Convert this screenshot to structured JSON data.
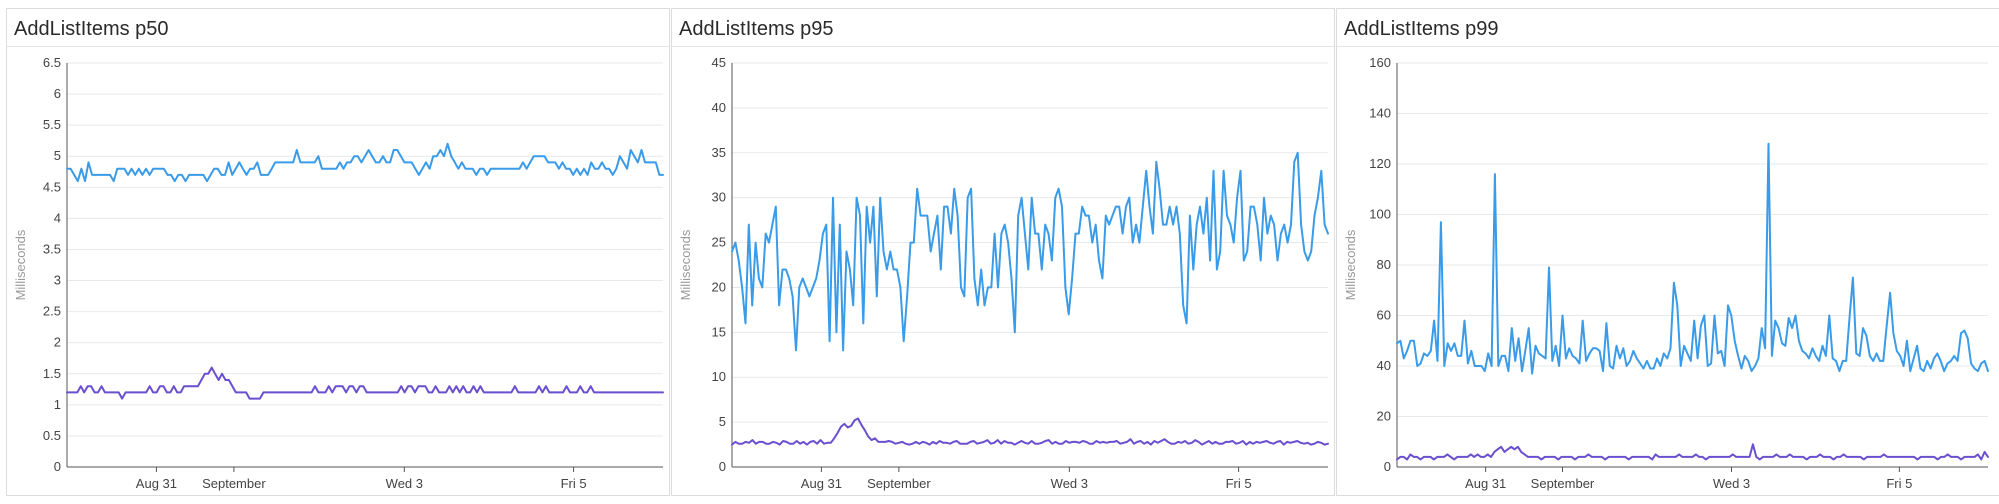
{
  "colors": {
    "series_blue": "#3a9be8",
    "series_purple": "#6a4fcf",
    "grid": "#e9e9e9",
    "axis": "#555555"
  },
  "chart_data": [
    {
      "type": "line",
      "title": "AddListItems p50",
      "ylabel": "Milliseconds",
      "ylim": [
        0,
        6.5
      ],
      "yticks": [
        "0",
        "0.5",
        "1",
        "1.5",
        "2",
        "2.5",
        "3",
        "3.5",
        "4",
        "4.5",
        "5",
        "5.5",
        "6",
        "6.5"
      ],
      "xlim": [
        0,
        1
      ],
      "xticks": [
        {
          "label": "Aug 31",
          "value": 0.15
        },
        {
          "label": "September",
          "value": 0.28
        },
        {
          "label": "Wed 3",
          "value": 0.566
        },
        {
          "label": "Fri 5",
          "value": 0.85
        }
      ],
      "grid": true,
      "series": [
        {
          "color": "#3a9be8",
          "values": [
            4.8,
            4.8,
            4.7,
            4.6,
            4.8,
            4.6,
            4.9,
            4.7,
            4.7,
            4.7,
            4.7,
            4.7,
            4.7,
            4.6,
            4.8,
            4.8,
            4.8,
            4.7,
            4.8,
            4.7,
            4.8,
            4.7,
            4.8,
            4.7,
            4.8,
            4.8,
            4.8,
            4.8,
            4.7,
            4.7,
            4.6,
            4.7,
            4.7,
            4.6,
            4.7,
            4.7,
            4.7,
            4.7,
            4.7,
            4.6,
            4.7,
            4.8,
            4.8,
            4.7,
            4.7,
            4.9,
            4.7,
            4.8,
            4.9,
            4.8,
            4.7,
            4.8,
            4.8,
            4.9,
            4.7,
            4.7,
            4.7,
            4.8,
            4.9,
            4.9,
            4.9,
            4.9,
            4.9,
            4.9,
            5.1,
            4.9,
            4.9,
            4.9,
            4.9,
            4.9,
            5.0,
            4.8,
            4.8,
            4.8,
            4.8,
            4.8,
            4.9,
            4.8,
            4.9,
            4.9,
            5.0,
            5.0,
            4.9,
            5.0,
            5.1,
            5.0,
            4.9,
            4.9,
            5.0,
            4.9,
            4.9,
            5.1,
            5.1,
            5.0,
            4.9,
            4.9,
            4.9,
            4.8,
            4.7,
            4.8,
            4.9,
            4.8,
            5.0,
            5.0,
            5.1,
            5.0,
            5.2,
            5.0,
            4.9,
            4.8,
            4.9,
            4.8,
            4.8,
            4.8,
            4.7,
            4.8,
            4.8,
            4.7,
            4.8,
            4.8,
            4.8,
            4.8,
            4.8,
            4.8,
            4.8,
            4.8,
            4.8,
            4.9,
            4.8,
            4.9,
            5.0,
            5.0,
            5.0,
            5.0,
            4.9,
            4.9,
            4.9,
            4.8,
            4.9,
            4.8,
            4.8,
            4.7,
            4.8,
            4.7,
            4.8,
            4.7,
            4.9,
            4.8,
            4.8,
            4.9,
            4.8,
            4.8,
            4.7,
            4.8,
            5.0,
            4.9,
            4.8,
            5.1,
            5.0,
            4.9,
            5.1,
            4.9,
            4.9,
            4.9,
            4.9,
            4.7,
            4.7
          ]
        },
        {
          "color": "#6a4fcf",
          "values": [
            1.2,
            1.2,
            1.2,
            1.2,
            1.3,
            1.2,
            1.3,
            1.3,
            1.2,
            1.2,
            1.3,
            1.2,
            1.2,
            1.2,
            1.2,
            1.2,
            1.1,
            1.2,
            1.2,
            1.2,
            1.2,
            1.2,
            1.2,
            1.2,
            1.3,
            1.2,
            1.2,
            1.3,
            1.3,
            1.2,
            1.2,
            1.3,
            1.2,
            1.2,
            1.3,
            1.3,
            1.3,
            1.3,
            1.3,
            1.4,
            1.5,
            1.5,
            1.6,
            1.5,
            1.4,
            1.5,
            1.4,
            1.4,
            1.3,
            1.2,
            1.2,
            1.2,
            1.2,
            1.1,
            1.1,
            1.1,
            1.1,
            1.2,
            1.2,
            1.2,
            1.2,
            1.2,
            1.2,
            1.2,
            1.2,
            1.2,
            1.2,
            1.2,
            1.2,
            1.2,
            1.2,
            1.2,
            1.3,
            1.2,
            1.2,
            1.2,
            1.3,
            1.2,
            1.3,
            1.3,
            1.3,
            1.2,
            1.3,
            1.3,
            1.2,
            1.3,
            1.3,
            1.2,
            1.2,
            1.2,
            1.2,
            1.2,
            1.2,
            1.2,
            1.2,
            1.2,
            1.2,
            1.3,
            1.2,
            1.3,
            1.3,
            1.2,
            1.3,
            1.3,
            1.3,
            1.2,
            1.2,
            1.3,
            1.2,
            1.2,
            1.2,
            1.3,
            1.2,
            1.3,
            1.2,
            1.3,
            1.2,
            1.2,
            1.3,
            1.2,
            1.3,
            1.2,
            1.2,
            1.2,
            1.2,
            1.2,
            1.2,
            1.2,
            1.2,
            1.2,
            1.3,
            1.2,
            1.2,
            1.2,
            1.2,
            1.2,
            1.2,
            1.3,
            1.2,
            1.3,
            1.2,
            1.2,
            1.2,
            1.2,
            1.2,
            1.3,
            1.2,
            1.2,
            1.2,
            1.3,
            1.2,
            1.2,
            1.3,
            1.2,
            1.2,
            1.2,
            1.2,
            1.2,
            1.2,
            1.2,
            1.2,
            1.2,
            1.2,
            1.2,
            1.2,
            1.2,
            1.2,
            1.2,
            1.2,
            1.2,
            1.2,
            1.2,
            1.2,
            1.2
          ]
        }
      ]
    },
    {
      "type": "line",
      "title": "AddListItems p95",
      "ylabel": "Milliseconds",
      "ylim": [
        0,
        45
      ],
      "yticks": [
        "0",
        "5",
        "10",
        "15",
        "20",
        "25",
        "30",
        "35",
        "40",
        "45"
      ],
      "xlim": [
        0,
        1
      ],
      "xticks": [
        {
          "label": "Aug 31",
          "value": 0.15
        },
        {
          "label": "September",
          "value": 0.28
        },
        {
          "label": "Wed 3",
          "value": 0.566
        },
        {
          "label": "Fri 5",
          "value": 0.85
        }
      ],
      "grid": true,
      "series": [
        {
          "color": "#3a9be8",
          "values": [
            24,
            25,
            23,
            20,
            16,
            27,
            18,
            25,
            21,
            20,
            26,
            25,
            27,
            29,
            18,
            22,
            22,
            21,
            19,
            13,
            20,
            21,
            20,
            19,
            20,
            21,
            23,
            26,
            27,
            14,
            30,
            15,
            27,
            13,
            24,
            22,
            18,
            30,
            28,
            16,
            29,
            25,
            29,
            19,
            30,
            24,
            22,
            24,
            22,
            22,
            20,
            14,
            19,
            25,
            25,
            31,
            28,
            28,
            28,
            24,
            26,
            28,
            22,
            29,
            29,
            26,
            31,
            28,
            20,
            19,
            30,
            31,
            21,
            18,
            22,
            18,
            20,
            20,
            26,
            20,
            26,
            27,
            25,
            21,
            15,
            28,
            30,
            26,
            22,
            30,
            26,
            26,
            22,
            27,
            26,
            23,
            30,
            31,
            29,
            20,
            17,
            21,
            26,
            26,
            29,
            28,
            28,
            25,
            27,
            23,
            21,
            28,
            27,
            28,
            29,
            29,
            26,
            29,
            30,
            25,
            27,
            25,
            29,
            33,
            29,
            26,
            34,
            31,
            27,
            27,
            29,
            27,
            29,
            26,
            18,
            16,
            28,
            22,
            27,
            29,
            26,
            30,
            23,
            33,
            22,
            24,
            33,
            28,
            27,
            25,
            30,
            33,
            23,
            24,
            29,
            29,
            27,
            23,
            30,
            26,
            28,
            27,
            23,
            26,
            27,
            25,
            27,
            34,
            35,
            27,
            24,
            23,
            24,
            28,
            30,
            33,
            27,
            26
          ]
        },
        {
          "color": "#6a4fcf",
          "values": [
            2.5,
            2.8,
            2.6,
            2.6,
            2.8,
            2.7,
            3.0,
            2.6,
            2.8,
            2.8,
            2.6,
            2.6,
            2.8,
            2.7,
            2.5,
            2.9,
            2.8,
            2.6,
            2.6,
            2.9,
            2.6,
            2.8,
            2.5,
            2.8,
            2.9,
            2.6,
            3.0,
            2.6,
            2.7,
            2.7,
            3.2,
            3.8,
            4.5,
            4.8,
            4.4,
            4.6,
            5.2,
            5.4,
            4.7,
            4.1,
            3.4,
            3.0,
            3.2,
            2.8,
            2.8,
            2.8,
            2.9,
            2.8,
            2.6,
            2.7,
            2.8,
            2.6,
            2.5,
            2.6,
            2.8,
            2.6,
            2.8,
            2.7,
            2.5,
            2.8,
            2.6,
            2.9,
            2.7,
            2.7,
            2.6,
            2.8,
            2.9,
            2.6,
            2.6,
            2.6,
            2.8,
            2.9,
            2.6,
            2.7,
            2.8,
            3.0,
            2.6,
            2.7,
            3.0,
            2.6,
            2.9,
            2.7,
            2.7,
            2.5,
            2.7,
            2.9,
            2.7,
            2.6,
            2.9,
            2.6,
            2.6,
            2.7,
            2.9,
            3.0,
            2.6,
            2.8,
            2.6,
            2.6,
            2.9,
            2.7,
            2.8,
            2.8,
            2.7,
            2.9,
            2.8,
            2.6,
            2.6,
            2.9,
            2.7,
            2.8,
            2.7,
            2.8,
            2.8,
            2.9,
            2.6,
            2.7,
            2.8,
            3.1,
            2.6,
            2.8,
            2.9,
            2.6,
            2.8,
            2.5,
            2.9,
            2.7,
            2.9,
            3.1,
            2.8,
            2.6,
            2.6,
            2.8,
            2.7,
            2.9,
            2.6,
            2.7,
            3.0,
            2.8,
            2.5,
            2.7,
            2.9,
            2.6,
            2.8,
            2.6,
            2.6,
            2.8,
            2.8,
            2.9,
            2.6,
            2.7,
            2.9,
            2.5,
            2.8,
            2.6,
            2.8,
            2.7,
            2.8,
            2.9,
            2.7,
            2.6,
            2.8,
            2.9,
            2.5,
            2.8,
            2.7,
            2.8,
            2.9,
            2.7,
            2.6,
            2.7,
            2.5,
            2.6,
            2.8,
            2.7,
            2.5,
            2.6
          ]
        }
      ]
    },
    {
      "type": "line",
      "title": "AddListItems p99",
      "ylabel": "Milliseconds",
      "ylim": [
        0,
        160
      ],
      "yticks": [
        "0",
        "20",
        "40",
        "60",
        "80",
        "100",
        "120",
        "140",
        "160"
      ],
      "xlim": [
        0,
        1
      ],
      "xticks": [
        {
          "label": "Aug 31",
          "value": 0.15
        },
        {
          "label": "September",
          "value": 0.28
        },
        {
          "label": "Wed 3",
          "value": 0.566
        },
        {
          "label": "Fri 5",
          "value": 0.85
        }
      ],
      "grid": true,
      "series": [
        {
          "color": "#3a9be8",
          "values": [
            49,
            50,
            43,
            46,
            50,
            50,
            40,
            41,
            45,
            44,
            46,
            58,
            42,
            97,
            40,
            49,
            46,
            49,
            44,
            44,
            58,
            41,
            46,
            40,
            40,
            40,
            38,
            45,
            40,
            116,
            40,
            44,
            44,
            38,
            55,
            42,
            51,
            38,
            46,
            55,
            37,
            48,
            45,
            44,
            43,
            79,
            42,
            48,
            40,
            60,
            43,
            47,
            44,
            43,
            41,
            58,
            42,
            45,
            47,
            47,
            46,
            38,
            57,
            40,
            39,
            48,
            43,
            47,
            40,
            42,
            46,
            43,
            41,
            39,
            42,
            39,
            39,
            43,
            40,
            45,
            43,
            47,
            73,
            64,
            40,
            48,
            45,
            42,
            58,
            43,
            56,
            60,
            40,
            41,
            60,
            45,
            46,
            40,
            64,
            60,
            50,
            44,
            39,
            44,
            42,
            38,
            40,
            43,
            55,
            47,
            128,
            44,
            58,
            55,
            49,
            48,
            59,
            55,
            60,
            50,
            46,
            45,
            43,
            47,
            44,
            42,
            48,
            44,
            60,
            43,
            42,
            38,
            42,
            42,
            59,
            75,
            45,
            44,
            55,
            52,
            44,
            42,
            45,
            42,
            42,
            56,
            69,
            53,
            46,
            44,
            40,
            50,
            38,
            43,
            48,
            39,
            38,
            42,
            39,
            43,
            45,
            42,
            38,
            41,
            42,
            44,
            42,
            53,
            54,
            51,
            41,
            39,
            38,
            41,
            42,
            38
          ]
        },
        {
          "color": "#6a4fcf",
          "values": [
            3,
            4,
            4,
            3,
            5,
            4,
            4,
            3,
            4,
            4,
            4,
            3,
            4,
            4,
            4,
            5,
            4,
            3,
            4,
            4,
            4,
            4,
            5,
            4,
            5,
            4,
            4,
            5,
            4,
            6,
            7,
            8,
            6,
            7,
            8,
            7,
            8,
            6,
            5,
            4,
            4,
            4,
            4,
            3,
            4,
            4,
            4,
            4,
            3,
            4,
            4,
            4,
            4,
            3,
            4,
            4,
            4,
            5,
            4,
            4,
            4,
            4,
            3,
            4,
            4,
            4,
            4,
            4,
            4,
            3,
            4,
            4,
            4,
            4,
            4,
            4,
            3,
            5,
            4,
            4,
            4,
            4,
            4,
            4,
            5,
            4,
            4,
            4,
            4,
            5,
            4,
            4,
            3,
            4,
            4,
            4,
            4,
            4,
            4,
            4,
            5,
            4,
            4,
            4,
            4,
            4,
            9,
            4,
            3,
            4,
            4,
            4,
            4,
            5,
            4,
            4,
            4,
            5,
            4,
            4,
            4,
            4,
            3,
            4,
            4,
            4,
            5,
            4,
            4,
            4,
            3,
            4,
            4,
            5,
            4,
            4,
            4,
            4,
            4,
            3,
            4,
            4,
            4,
            4,
            4,
            5,
            4,
            4,
            4,
            4,
            4,
            4,
            4,
            4,
            4,
            3,
            4,
            4,
            4,
            4,
            4,
            3,
            4,
            4,
            5,
            4,
            4,
            4,
            3,
            4,
            4,
            4,
            4,
            5,
            3,
            6,
            4
          ]
        }
      ]
    }
  ]
}
